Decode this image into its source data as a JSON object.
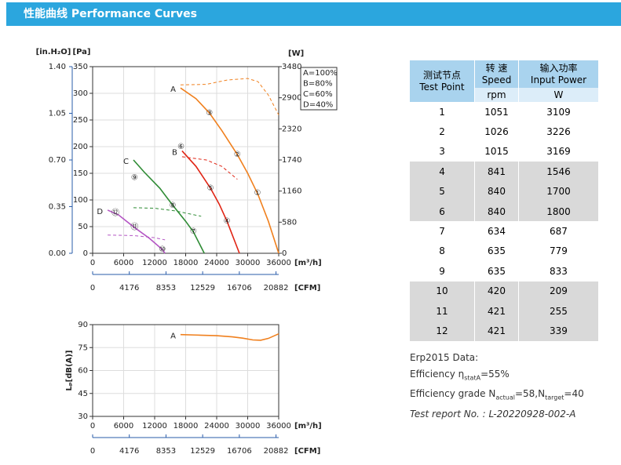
{
  "header": {
    "title": "性能曲线  Performance Curves"
  },
  "chart_data": [
    {
      "type": "line",
      "y_label": "[Pa]",
      "y3_label": "[in.H₂O]",
      "y2_label": "[W]",
      "x_label": "[m³/h]",
      "x2_label": "[CFM]",
      "xlim": [
        0,
        36000
      ],
      "xticks": [
        0,
        6000,
        12000,
        18000,
        24000,
        30000,
        36000
      ],
      "x2lim": [
        0,
        21189
      ],
      "x2ticks": [
        0,
        4176,
        8353,
        12529,
        16706,
        20882
      ],
      "ylim": [
        0,
        350
      ],
      "yticks": [
        0,
        50,
        100,
        150,
        200,
        250,
        300,
        350
      ],
      "y2lim": [
        0,
        3480
      ],
      "y2ticks": [
        0,
        580,
        1160,
        1740,
        2320,
        2900,
        3480
      ],
      "y3lim": [
        0,
        1.4
      ],
      "y3ticks": [
        {
          "value": 0,
          "label": "0.00"
        },
        {
          "value": 0.35,
          "label": "0.35"
        },
        {
          "value": 0.7,
          "label": "0.70"
        },
        {
          "value": 1.05,
          "label": "1.05"
        },
        {
          "value": 1.4,
          "label": "1.40"
        }
      ],
      "grid": true,
      "series": [
        {
          "name": "A=100%",
          "label": "A",
          "color": "#f0801e",
          "x": [
            17000,
            20000,
            22600,
            25000,
            28000,
            30000,
            32000,
            34000,
            36000
          ],
          "values": [
            310,
            290,
            263,
            230,
            185,
            150,
            110,
            60,
            0
          ],
          "power_x": [
            17000,
            22000,
            26000,
            30000,
            32000,
            34000,
            36000
          ],
          "power_values": [
            3140,
            3150,
            3230,
            3260,
            3200,
            2950,
            2580
          ]
        },
        {
          "name": "B=80%",
          "label": "B",
          "color": "#e02414",
          "x": [
            17300,
            20000,
            22800,
            24500,
            26000,
            28400
          ],
          "values": [
            192,
            163,
            122,
            92,
            60,
            0
          ],
          "power_x": [
            17300,
            22000,
            25000,
            28000
          ],
          "power_values": [
            1800,
            1740,
            1620,
            1380
          ]
        },
        {
          "name": "C=60%",
          "label": "C",
          "color": "#2e8b34",
          "x": [
            7900,
            10000,
            13000,
            15500,
            18000,
            19500,
            21600
          ],
          "values": [
            175,
            152,
            122,
            90,
            60,
            40,
            0
          ],
          "power_x": [
            7900,
            12000,
            16000,
            21000
          ],
          "power_values": [
            850,
            840,
            790,
            690
          ]
        },
        {
          "name": "D=40%",
          "label": "D",
          "color": "#b455c4",
          "x": [
            2900,
            5000,
            8000,
            11000,
            13500,
            14000
          ],
          "values": [
            81,
            72,
            49,
            28,
            7,
            0
          ],
          "power_x": [
            2900,
            8000,
            12000,
            14000
          ],
          "power_values": [
            340,
            330,
            290,
            250
          ]
        }
      ],
      "points": [
        {
          "label": "①",
          "x": 31900,
          "y": 113
        },
        {
          "label": "②",
          "x": 28000,
          "y": 185
        },
        {
          "label": "③",
          "x": 22600,
          "y": 263
        },
        {
          "label": "④",
          "x": 26000,
          "y": 60
        },
        {
          "label": "⑤",
          "x": 22800,
          "y": 122
        },
        {
          "label": "⑥",
          "x": 17100,
          "y": 200
        },
        {
          "label": "⑦",
          "x": 19500,
          "y": 41
        },
        {
          "label": "⑧",
          "x": 15500,
          "y": 90
        },
        {
          "label": "⑨",
          "x": 8100,
          "y": 142
        },
        {
          "label": "⑩",
          "x": 13500,
          "y": 7
        },
        {
          "label": "⑪",
          "x": 8100,
          "y": 49
        },
        {
          "label": "⑫",
          "x": 4400,
          "y": 76
        }
      ]
    },
    {
      "type": "line",
      "y_label": "Lₚ[dB(A)]",
      "x_label": "[m³/h]",
      "x2_label": "[CFM]",
      "xlim": [
        0,
        36000
      ],
      "xticks": [
        0,
        6000,
        12000,
        18000,
        24000,
        30000,
        36000
      ],
      "x2lim": [
        0,
        21189
      ],
      "x2ticks": [
        0,
        4176,
        8353,
        12529,
        16706,
        20882
      ],
      "ylim": [
        30,
        90
      ],
      "yticks": [
        30,
        45,
        60,
        75,
        90
      ],
      "grid": true,
      "series": [
        {
          "name": "A",
          "color": "#f0801e",
          "x": [
            17000,
            20000,
            24000,
            27000,
            29000,
            31000,
            32500,
            34000,
            36000
          ],
          "values": [
            83.5,
            83.2,
            82.8,
            82,
            81.2,
            80,
            79.8,
            81,
            84
          ]
        }
      ]
    }
  ],
  "table": {
    "header": [
      [
        "测试节点",
        "Test Point"
      ],
      [
        "转 速",
        "Speed"
      ],
      [
        "输入功率",
        "Input Power"
      ]
    ],
    "units": [
      "rpm",
      "W"
    ],
    "rows": [
      [
        1,
        1051,
        3109
      ],
      [
        2,
        1026,
        3226
      ],
      [
        3,
        1015,
        3169
      ],
      [
        4,
        841,
        1546
      ],
      [
        5,
        840,
        1700
      ],
      [
        6,
        840,
        1800
      ],
      [
        7,
        634,
        687
      ],
      [
        8,
        635,
        779
      ],
      [
        9,
        635,
        833
      ],
      [
        10,
        420,
        209
      ],
      [
        11,
        421,
        255
      ],
      [
        12,
        421,
        339
      ]
    ]
  },
  "erp": {
    "title": "Erp2015  Data:",
    "eff": [
      "Efficiency η",
      "statA",
      "=55%"
    ],
    "grade": [
      "Efficiency grade N",
      "actual",
      "=58,N",
      "target",
      "=40"
    ],
    "report": "Test report No. : L-20220928-002-A"
  }
}
